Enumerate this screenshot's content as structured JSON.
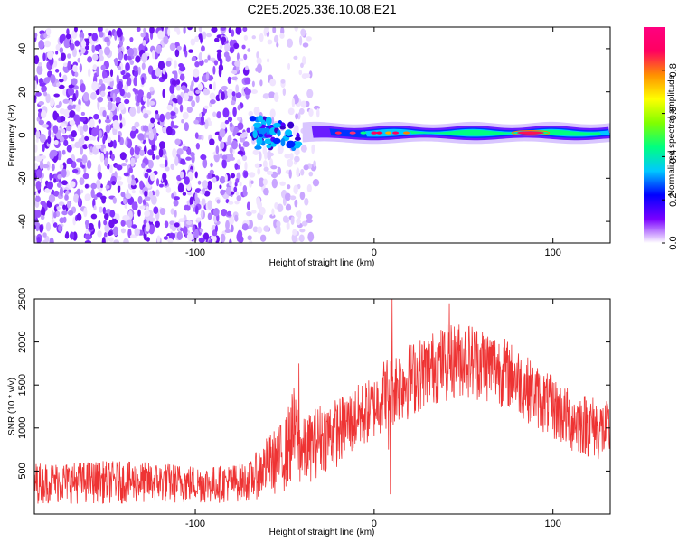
{
  "title": "C2E5.2025.336.10.08.E21",
  "chart_data": [
    {
      "type": "heatmap",
      "xlabel": "Height of straight line (km)",
      "ylabel": "Frequency (Hz)",
      "xlim": [
        -190,
        132
      ],
      "ylim": [
        -50,
        50
      ],
      "xticks": [
        -100,
        0,
        100
      ],
      "yticks": [
        -40,
        -20,
        0,
        20,
        40
      ],
      "colorbar": {
        "label": "Normalized spectral amplitude",
        "range": [
          0,
          1
        ],
        "ticks": [
          "0.0",
          "0.2",
          "0.4",
          "0.6",
          "0.8"
        ],
        "colormap": [
          "#ffffff",
          "#7a00ff",
          "#0000ff",
          "#00c8ff",
          "#00ff80",
          "#80ff00",
          "#ffff00",
          "#ff9000",
          "#ff0060",
          "#ff0080"
        ]
      },
      "features": {
        "noise_region_x": [
          -190,
          -35
        ],
        "signal_start_x": -70,
        "signal_freq_hz": 1,
        "peak_x": [
          80,
          95
        ]
      }
    },
    {
      "type": "line",
      "xlabel": "Height of straight line (km)",
      "ylabel": "SNR (10 * v/v)",
      "xlim": [
        -190,
        132
      ],
      "ylim": [
        0,
        2500
      ],
      "xticks": [
        -100,
        0,
        100
      ],
      "yticks": [
        500,
        1000,
        1500,
        2000,
        2500
      ],
      "color": "#ee3333",
      "envelope": {
        "x": [
          -190,
          -150,
          -120,
          -90,
          -70,
          -60,
          -50,
          -45,
          -40,
          -30,
          -20,
          -10,
          0,
          5,
          10,
          15,
          20,
          30,
          40,
          50,
          60,
          70,
          80,
          90,
          100,
          110,
          120,
          132
        ],
        "low": [
          120,
          120,
          120,
          120,
          150,
          200,
          250,
          350,
          300,
          450,
          550,
          700,
          850,
          950,
          1000,
          1050,
          1100,
          1250,
          1300,
          1350,
          1300,
          1250,
          1150,
          1000,
          850,
          700,
          650,
          550
        ],
        "high": [
          600,
          620,
          600,
          560,
          600,
          900,
          1100,
          1500,
          1100,
          1300,
          1350,
          1500,
          1600,
          1800,
          1900,
          1950,
          2000,
          2100,
          2200,
          2250,
          2200,
          2100,
          1950,
          1750,
          1600,
          1450,
          1400,
          1300
        ]
      },
      "notable_spikes": [
        {
          "x": -42,
          "y": 1750
        },
        {
          "x": 10,
          "y": 2500
        },
        {
          "x": 42,
          "y": 2450
        },
        {
          "x": 8,
          "y": 750
        },
        {
          "x": 9,
          "y": 230
        }
      ]
    }
  ]
}
